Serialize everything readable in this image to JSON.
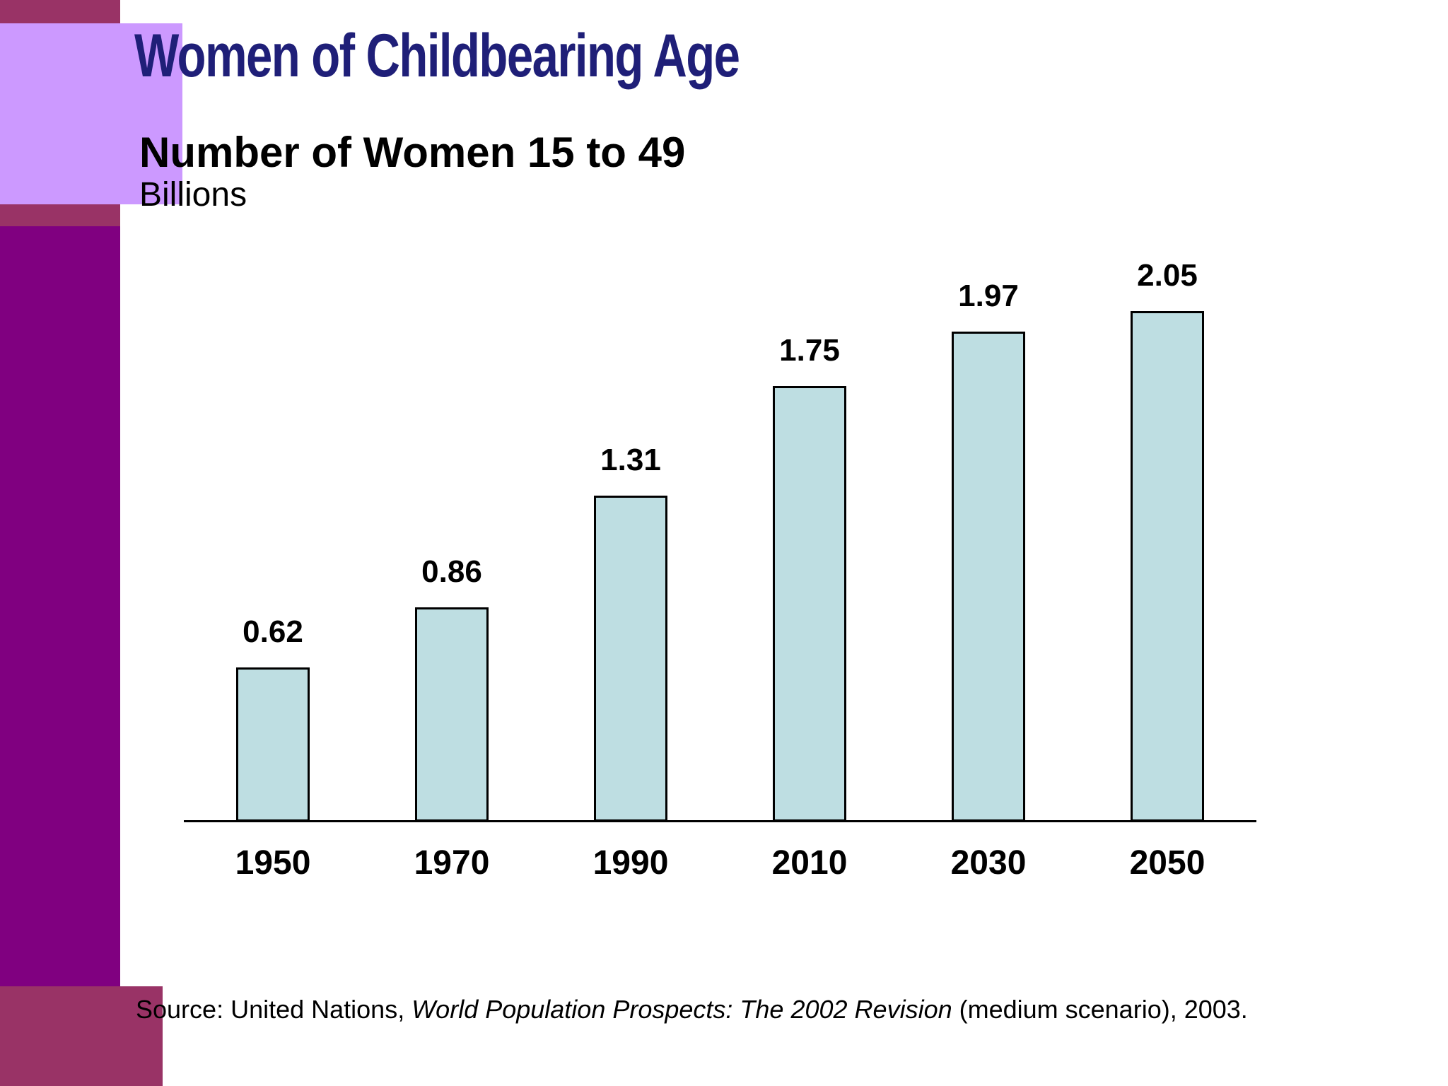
{
  "slide": {
    "title": "Women of Childbearing Age",
    "subtitle": "Number of Women 15 to 49",
    "unit_label": "Billions",
    "source_prefix": "Source: United Nations, ",
    "source_italic": "World Population Prospects: The 2002 Revision",
    "source_suffix": " (medium scenario), 2003."
  },
  "colors": {
    "title_text": "#1F1F78",
    "body_text": "#000000",
    "bar_fill": "#BEDEE2",
    "bar_border": "#000000",
    "accent_maroon": "#993366",
    "accent_lilac": "#CC99FF",
    "accent_purple": "#800080",
    "background": "#FFFFFF"
  },
  "chart_data": {
    "type": "bar",
    "categories": [
      "1950",
      "1970",
      "1990",
      "2010",
      "2030",
      "2050"
    ],
    "values": [
      0.62,
      0.86,
      1.31,
      1.75,
      1.97,
      2.05
    ],
    "data_labels": [
      "0.62",
      "0.86",
      "1.31",
      "1.75",
      "1.97",
      "2.05"
    ],
    "title": "Number of Women 15 to 49",
    "xlabel": "",
    "ylabel": "Billions",
    "ylim": [
      0,
      2.2
    ],
    "grid": false,
    "legend": false,
    "bar_color": "#BEDEE2",
    "bar_outline": "#000000"
  }
}
